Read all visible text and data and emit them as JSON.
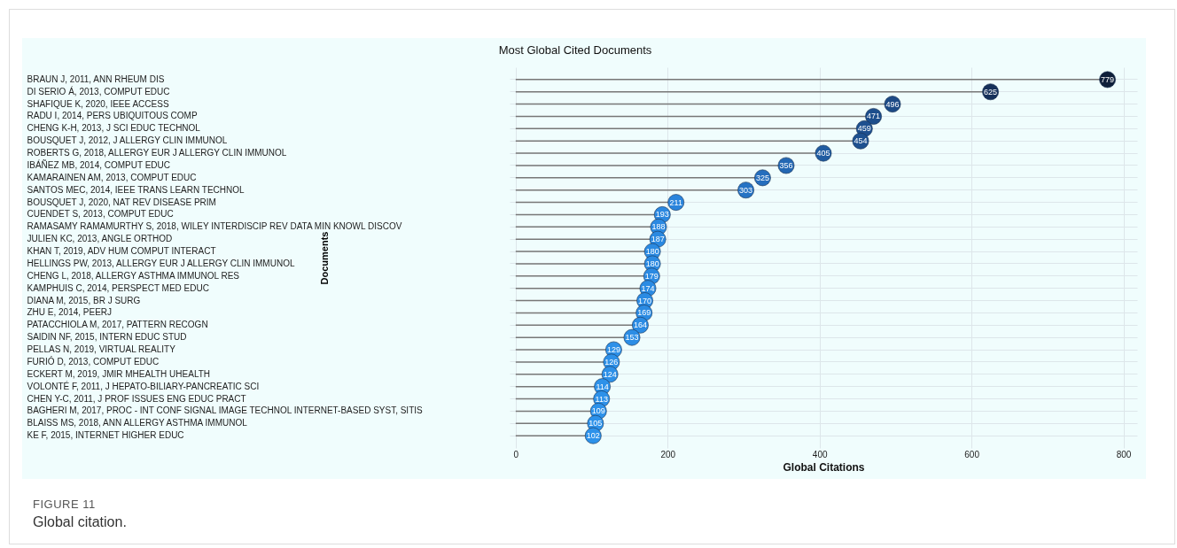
{
  "chart_data": {
    "type": "lollipop",
    "title": "Most Global Cited Documents",
    "xlabel": "Global Citations",
    "ylabel": "Documents",
    "orientation": "horizontal",
    "categories": [
      "BRAUN J, 2011, ANN RHEUM DIS",
      "DI SERIO Á, 2013, COMPUT EDUC",
      "SHAFIQUE K, 2020, IEEE ACCESS",
      "RADU I, 2014, PERS UBIQUITOUS COMP",
      "CHENG K-H, 2013, J SCI EDUC TECHNOL",
      "BOUSQUET J, 2012, J ALLERGY CLIN IMMUNOL",
      "ROBERTS G, 2018, ALLERGY EUR J ALLERGY CLIN IMMUNOL",
      "IBÁÑEZ MB, 2014, COMPUT EDUC",
      "KAMARAINEN AM, 2013, COMPUT EDUC",
      "SANTOS MEC, 2014, IEEE TRANS LEARN TECHNOL",
      "BOUSQUET J, 2020, NAT REV DISEASE PRIM",
      "CUENDET S, 2013, COMPUT EDUC",
      "RAMASAMY RAMAMURTHY S, 2018, WILEY INTERDISCIP REV DATA MIN KNOWL DISCOV",
      "JULIEN KC, 2013, ANGLE ORTHOD",
      "KHAN T, 2019, ADV HUM COMPUT INTERACT",
      "HELLINGS PW, 2013, ALLERGY EUR J ALLERGY CLIN IMMUNOL",
      "CHENG L, 2018, ALLERGY ASTHMA IMMUNOL RES",
      "KAMPHUIS C, 2014, PERSPECT MED EDUC",
      "DIANA M, 2015, BR J SURG",
      "ZHU E, 2014, PEERJ",
      "PATACCHIOLA M, 2017, PATTERN RECOGN",
      "SAIDIN NF, 2015, INTERN EDUC STUD",
      "PELLAS N, 2019, VIRTUAL REALITY",
      "FURIÓ D, 2013, COMPUT EDUC",
      "ECKERT M, 2019, JMIR MHEALTH UHEALTH",
      "VOLONTÉ F, 2011, J HEPATO-BILIARY-PANCREATIC SCI",
      "CHEN Y-C, 2011, J PROF ISSUES ENG EDUC PRACT",
      "BAGHERI M, 2017, PROC - INT CONF SIGNAL IMAGE TECHNOL INTERNET-BASED SYST, SITIS",
      "BLAISS MS, 2018, ANN ALLERGY ASTHMA IMMUNOL",
      "KE F, 2015, INTERNET HIGHER EDUC"
    ],
    "values": [
      779,
      625,
      496,
      471,
      459,
      454,
      405,
      356,
      325,
      303,
      211,
      193,
      188,
      187,
      180,
      180,
      179,
      174,
      170,
      169,
      164,
      153,
      129,
      126,
      124,
      114,
      113,
      109,
      105,
      102
    ],
    "colors": [
      "#0e1f3a",
      "#15305a",
      "#1c4a86",
      "#1d4e8c",
      "#1e508f",
      "#1e5190",
      "#205ca1",
      "#2367b3",
      "#256ebd",
      "#2673c4",
      "#2a84dc",
      "#2b88e0",
      "#2b89e1",
      "#2b89e1",
      "#2b8ae2",
      "#2b8ae2",
      "#2b8ae2",
      "#2b8be3",
      "#2b8be3",
      "#2b8be3",
      "#2c8ce4",
      "#2c8de5",
      "#2d90e8",
      "#2d90e8",
      "#2d90e8",
      "#2d91e9",
      "#2d91e9",
      "#2d92ea",
      "#2d92ea",
      "#2d92ea"
    ],
    "data_labels": true,
    "marker": "circle",
    "grid": true,
    "xlim": [
      -8,
      818
    ],
    "xticks": [
      0,
      200,
      400,
      600,
      800
    ],
    "annotations": [
      "FIGURE 11",
      "Global citation."
    ]
  }
}
